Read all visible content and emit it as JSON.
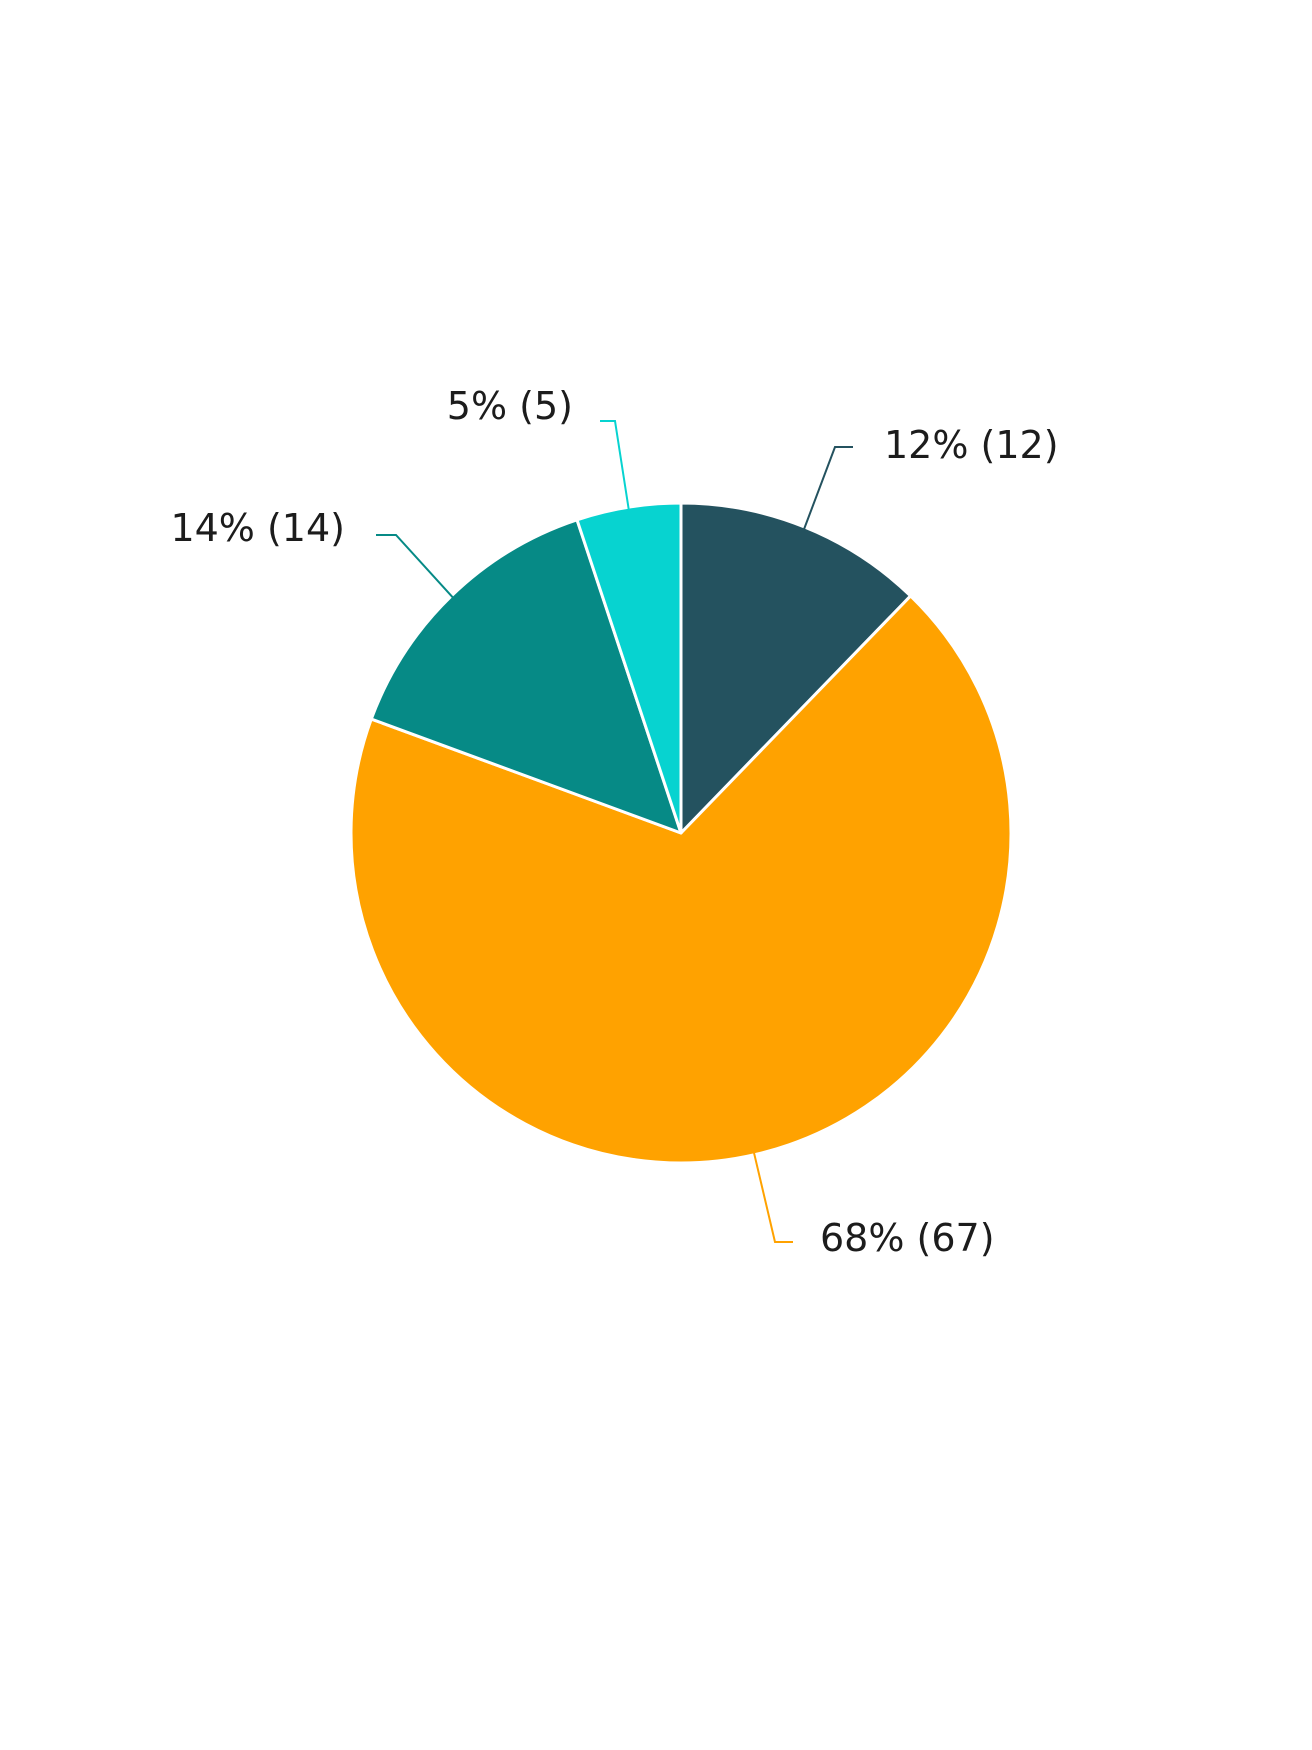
{
  "chart_data": {
    "type": "pie",
    "start_angle_deg": 0,
    "direction": "clockwise",
    "slices": [
      {
        "value": 12,
        "percent_label": "12%",
        "count_label": "(12)",
        "color": "#24525f"
      },
      {
        "value": 67,
        "percent_label": "68%",
        "count_label": "(67)",
        "color": "#ffa200"
      },
      {
        "value": 14,
        "percent_label": "14%",
        "count_label": "(14)",
        "color": "#068a86"
      },
      {
        "value": 5,
        "percent_label": "5%",
        "count_label": "(5)",
        "color": "#07d3d0"
      }
    ]
  }
}
